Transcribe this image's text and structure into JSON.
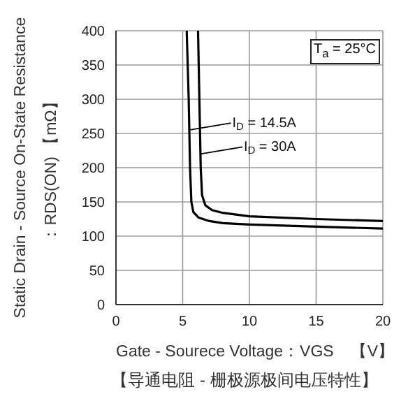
{
  "chart_data": {
    "type": "line",
    "xlabel": "Gate - Sourece Voltage：VGS　【V】",
    "ylabel": "Static Drain - Source On-State Resistance\n：RDS(ON) 【mΩ】",
    "xlim": [
      0,
      20
    ],
    "xticks": [
      0,
      5,
      10,
      15,
      20
    ],
    "ylim": [
      0,
      400
    ],
    "yticks": [
      0,
      50,
      100,
      150,
      200,
      250,
      300,
      350,
      400
    ],
    "grid": true,
    "legend": false,
    "marker": "none",
    "line_style": "solid",
    "series": [
      {
        "color": "#000000",
        "x": [
          5.3,
          5.45,
          5.55,
          5.65,
          5.8,
          6.2,
          7,
          8,
          10,
          15,
          20
        ],
        "values": [
          400,
          300,
          200,
          150,
          135,
          127,
          122,
          119,
          117,
          114,
          111
        ]
      },
      {
        "color": "#000000",
        "x": [
          6.15,
          6.25,
          6.35,
          6.45,
          6.7,
          7.2,
          8,
          10,
          15,
          20
        ],
        "values": [
          400,
          300,
          200,
          160,
          145,
          138,
          134,
          129,
          125,
          122
        ]
      }
    ],
    "annotations": [
      {
        "text": "I$_{D}$ = 14.5A",
        "x": 5.47,
        "y": 255
      },
      {
        "text": "I$_{D}$ = 30A",
        "x": 6.33,
        "y": 220
      },
      "T$_{a}$ = 25°C",
      "【导通电阻 - 栅极源极间电压特性】"
    ]
  }
}
